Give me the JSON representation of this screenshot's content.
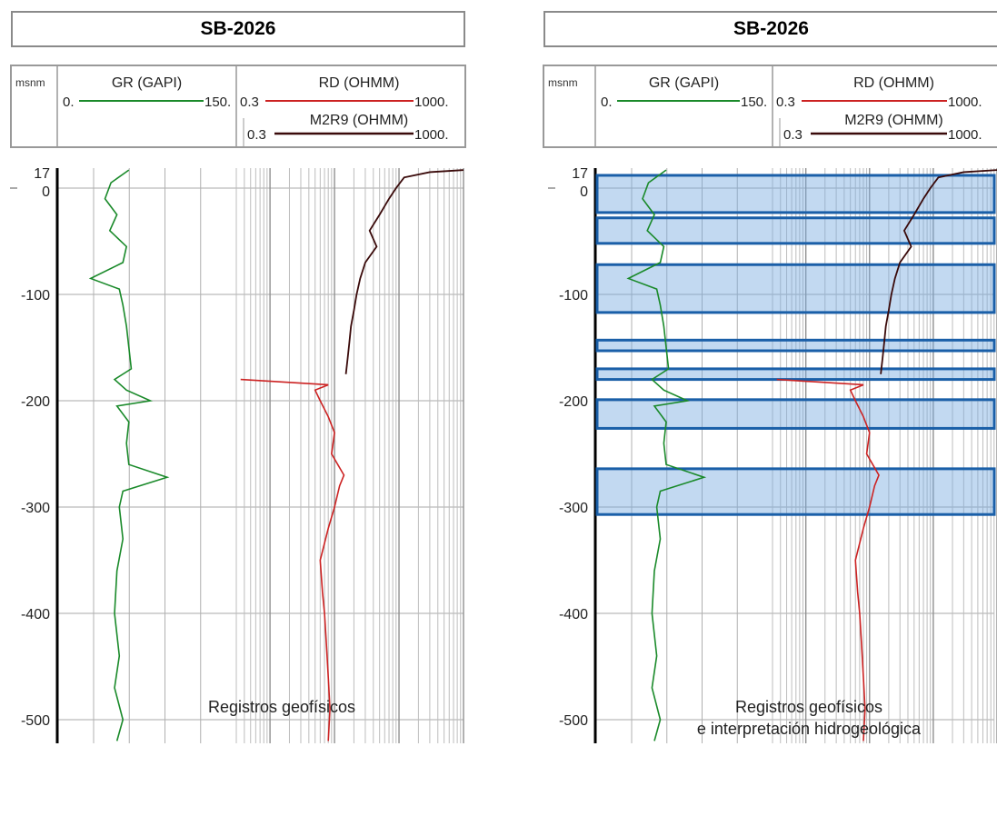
{
  "panels": [
    {
      "title": "SB-2026",
      "caption": [
        "Registros geofísicos"
      ],
      "depth_header": "msnm",
      "tracks": {
        "gr": {
          "name": "GR (GAPI)",
          "min": "0.",
          "max": "150.",
          "color": "#1a8a2a"
        },
        "rd": {
          "name": "RD (OHMM)",
          "min": "0.3",
          "max": "1000.",
          "color": "#cc2222"
        },
        "m2r9": {
          "name": "M2R9 (OHMM)",
          "min": "0.3",
          "max": "1000.",
          "color": "#3a0a0a"
        }
      },
      "interpretation": false
    },
    {
      "title": "SB-2026",
      "caption": [
        "Registros geofísicos",
        "e interpretación hidrogeológica"
      ],
      "depth_header": "msnm",
      "tracks": {
        "gr": {
          "name": "GR (GAPI)",
          "min": "0.",
          "max": "150.",
          "color": "#1a8a2a"
        },
        "rd": {
          "name": "RD (OHMM)",
          "min": "0.3",
          "max": "1000.",
          "color": "#cc2222"
        },
        "m2r9": {
          "name": "M2R9 (OHMM)",
          "min": "0.3",
          "max": "1000.",
          "color": "#3a0a0a"
        }
      },
      "interpretation": true
    }
  ],
  "chart_data": {
    "type": "line",
    "depth_unit": "msnm",
    "depth_ticks": [
      17,
      0,
      -100,
      -200,
      -300,
      -400,
      -500
    ],
    "depth_range": [
      17,
      -520
    ],
    "gr": {
      "range": [
        0,
        150
      ],
      "series": [
        [
          17,
          60
        ],
        [
          5,
          45
        ],
        [
          -10,
          40
        ],
        [
          -25,
          50
        ],
        [
          -40,
          44
        ],
        [
          -55,
          58
        ],
        [
          -70,
          55
        ],
        [
          -85,
          28
        ],
        [
          -95,
          52
        ],
        [
          -110,
          55
        ],
        [
          -130,
          58
        ],
        [
          -150,
          60
        ],
        [
          -170,
          62
        ],
        [
          -180,
          48
        ],
        [
          -190,
          58
        ],
        [
          -200,
          78
        ],
        [
          -205,
          50
        ],
        [
          -220,
          60
        ],
        [
          -240,
          58
        ],
        [
          -260,
          60
        ],
        [
          -272,
          92
        ],
        [
          -285,
          55
        ],
        [
          -300,
          52
        ],
        [
          -330,
          55
        ],
        [
          -360,
          50
        ],
        [
          -400,
          48
        ],
        [
          -440,
          52
        ],
        [
          -470,
          48
        ],
        [
          -500,
          55
        ],
        [
          -520,
          50
        ]
      ]
    },
    "rd": {
      "range": [
        0.3,
        1000
      ],
      "scale": "log",
      "series": [
        [
          -180,
          0.35
        ],
        [
          -185,
          8
        ],
        [
          -190,
          5
        ],
        [
          -200,
          6
        ],
        [
          -215,
          8
        ],
        [
          -230,
          10
        ],
        [
          -250,
          9
        ],
        [
          -270,
          14
        ],
        [
          -280,
          12
        ],
        [
          -300,
          10
        ],
        [
          -320,
          8
        ],
        [
          -350,
          6
        ],
        [
          -380,
          6.5
        ],
        [
          -400,
          7
        ],
        [
          -430,
          7.5
        ],
        [
          -460,
          8
        ],
        [
          -490,
          8.5
        ],
        [
          -520,
          8
        ]
      ]
    },
    "m2r9": {
      "range": [
        0.3,
        1000
      ],
      "scale": "log",
      "series": [
        [
          17,
          1000
        ],
        [
          15,
          300
        ],
        [
          10,
          120
        ],
        [
          0,
          90
        ],
        [
          -10,
          70
        ],
        [
          -25,
          50
        ],
        [
          -40,
          35
        ],
        [
          -55,
          45
        ],
        [
          -70,
          30
        ],
        [
          -85,
          25
        ],
        [
          -100,
          22
        ],
        [
          -115,
          20
        ],
        [
          -130,
          18
        ],
        [
          -145,
          17
        ],
        [
          -160,
          16
        ],
        [
          -175,
          15
        ]
      ]
    },
    "interpretation_zones_msnm": [
      [
        12,
        -23
      ],
      [
        -28,
        -52
      ],
      [
        -72,
        -117
      ],
      [
        -143,
        -153
      ],
      [
        -170,
        -180
      ],
      [
        -199,
        -226
      ],
      [
        -264,
        -307
      ]
    ]
  }
}
